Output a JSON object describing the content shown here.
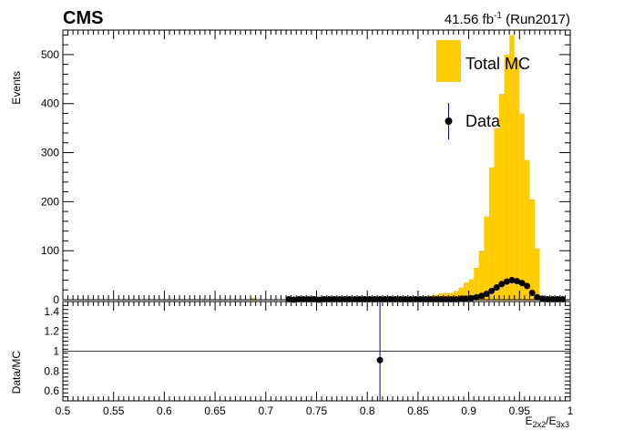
{
  "header": {
    "experiment": "CMS",
    "lumi_value": "41.56 fb",
    "lumi_exp": "-1",
    "run": " (Run2017)"
  },
  "axes": {
    "ylabel_top": "Events",
    "ylabel_bottom": "Data/MC",
    "xlabel_main": "E",
    "xlabel_sub1": "2x2",
    "xlabel_mid": "/E",
    "xlabel_sub2": "3x3"
  },
  "legend": {
    "mc_label": "Total MC",
    "data_label": "Data"
  },
  "colors": {
    "mc_fill": "#ffcc00",
    "data_marker": "#000000",
    "data_error": "#000099",
    "ratio_line": "#cc0000"
  },
  "chart_data": [
    {
      "type": "bar",
      "title": "",
      "xlabel": "E2x2/E3x3",
      "ylabel": "Events",
      "xlim": [
        0.5,
        1.0
      ],
      "ylim": [
        0,
        550
      ],
      "x_ticks": [
        0.5,
        0.55,
        0.6,
        0.65,
        0.7,
        0.75,
        0.8,
        0.85,
        0.9,
        0.95,
        1.0
      ],
      "y_ticks": [
        0,
        100,
        200,
        300,
        400,
        500
      ],
      "bin_width": 0.005,
      "series": [
        {
          "name": "Total MC",
          "style": "filled-histogram",
          "bins": [
            [
              0.685,
              4
            ],
            [
              0.79,
              2
            ],
            [
              0.835,
              3
            ],
            [
              0.84,
              4
            ],
            [
              0.845,
              4
            ],
            [
              0.85,
              3
            ],
            [
              0.855,
              6
            ],
            [
              0.86,
              8
            ],
            [
              0.865,
              10
            ],
            [
              0.87,
              13
            ],
            [
              0.875,
              14
            ],
            [
              0.88,
              14
            ],
            [
              0.885,
              18
            ],
            [
              0.89,
              25
            ],
            [
              0.895,
              35
            ],
            [
              0.9,
              42
            ],
            [
              0.905,
              65
            ],
            [
              0.91,
              100
            ],
            [
              0.915,
              170
            ],
            [
              0.92,
              270
            ],
            [
              0.925,
              350
            ],
            [
              0.93,
              420
            ],
            [
              0.935,
              500
            ],
            [
              0.94,
              540
            ],
            [
              0.945,
              490
            ],
            [
              0.95,
              380
            ],
            [
              0.955,
              285
            ],
            [
              0.96,
              205
            ],
            [
              0.965,
              105
            ],
            [
              0.97,
              5
            ]
          ]
        },
        {
          "name": "Data",
          "style": "markers",
          "points": [
            [
              0.7225,
              1
            ],
            [
              0.7275,
              0
            ],
            [
              0.7325,
              1
            ],
            [
              0.7375,
              1
            ],
            [
              0.7425,
              1
            ],
            [
              0.7475,
              1
            ],
            [
              0.7525,
              0
            ],
            [
              0.7575,
              1
            ],
            [
              0.7625,
              1
            ],
            [
              0.7675,
              1
            ],
            [
              0.7725,
              1
            ],
            [
              0.7775,
              1
            ],
            [
              0.7825,
              1
            ],
            [
              0.7875,
              1
            ],
            [
              0.7925,
              1
            ],
            [
              0.7975,
              1
            ],
            [
              0.8025,
              1
            ],
            [
              0.8075,
              1
            ],
            [
              0.8125,
              1
            ],
            [
              0.8175,
              1
            ],
            [
              0.8225,
              1
            ],
            [
              0.8275,
              1
            ],
            [
              0.8325,
              1
            ],
            [
              0.8375,
              1
            ],
            [
              0.8425,
              1
            ],
            [
              0.8475,
              1
            ],
            [
              0.8525,
              1
            ],
            [
              0.8575,
              1
            ],
            [
              0.8625,
              1
            ],
            [
              0.8675,
              1
            ],
            [
              0.8725,
              1
            ],
            [
              0.8775,
              1
            ],
            [
              0.8825,
              1
            ],
            [
              0.8875,
              1
            ],
            [
              0.8925,
              2
            ],
            [
              0.8975,
              2
            ],
            [
              0.9025,
              3
            ],
            [
              0.9075,
              5
            ],
            [
              0.9125,
              8
            ],
            [
              0.9175,
              12
            ],
            [
              0.9225,
              18
            ],
            [
              0.9275,
              25
            ],
            [
              0.9325,
              32
            ],
            [
              0.9375,
              37
            ],
            [
              0.9425,
              40
            ],
            [
              0.9475,
              38
            ],
            [
              0.9525,
              34
            ],
            [
              0.9575,
              28
            ],
            [
              0.9625,
              14
            ],
            [
              0.9675,
              5
            ],
            [
              0.9725,
              2
            ],
            [
              0.9775,
              1
            ],
            [
              0.9825,
              1
            ],
            [
              0.9875,
              1
            ],
            [
              0.9925,
              1
            ]
          ]
        }
      ]
    },
    {
      "type": "scatter",
      "title": "",
      "xlabel": "E2x2/E3x3",
      "ylabel": "Data/MC",
      "xlim": [
        0.5,
        1.0
      ],
      "ylim": [
        0.5,
        1.5
      ],
      "x_ticks": [
        0.5,
        0.55,
        0.6,
        0.65,
        0.7,
        0.75,
        0.8,
        0.85,
        0.9,
        0.95,
        1.0
      ],
      "y_ticks": [
        0.6,
        0.8,
        1.0,
        1.2,
        1.4
      ],
      "reference_line": 1.0,
      "series": [
        {
          "name": "Data/MC",
          "points": [
            [
              0.8125,
              0.91
            ]
          ],
          "errors": [
            [
              0.5,
              1.5
            ]
          ]
        }
      ]
    }
  ]
}
